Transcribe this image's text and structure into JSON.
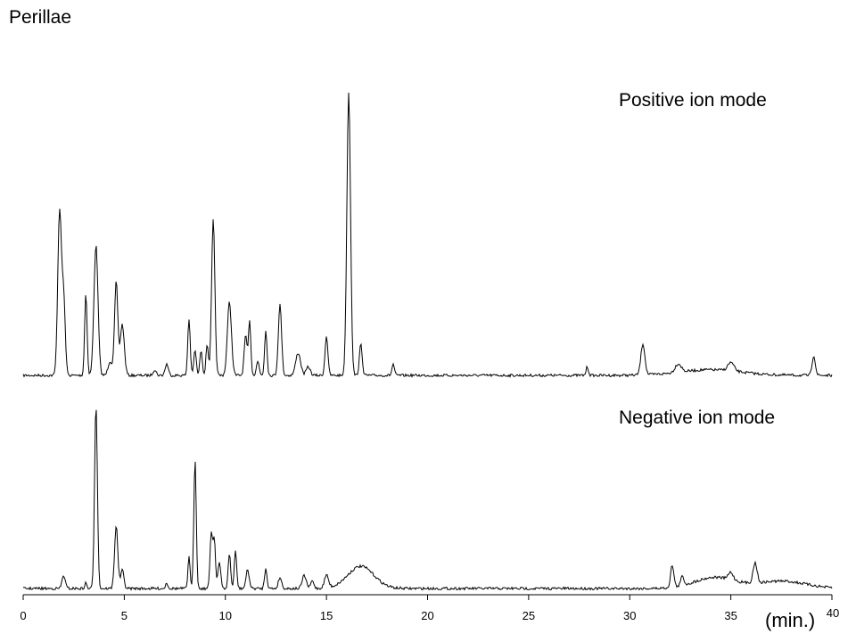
{
  "chart_data": {
    "type": "line",
    "title": "Perillae",
    "xlabel": "(min.)",
    "ylabel": "",
    "xlim": [
      0,
      40
    ],
    "xticks": [
      "0",
      "5",
      "10",
      "15",
      "20",
      "25",
      "30",
      "35",
      "40"
    ],
    "grid": false,
    "series": [
      {
        "name": "Positive ion mode",
        "y_units": "relative intensity (%)",
        "peaks": [
          {
            "rt": 1.8,
            "h": 58,
            "w": 0.09
          },
          {
            "rt": 2.0,
            "h": 27,
            "w": 0.08
          },
          {
            "rt": 3.1,
            "h": 29,
            "w": 0.06
          },
          {
            "rt": 3.6,
            "h": 46,
            "w": 0.1
          },
          {
            "rt": 4.3,
            "h": 5,
            "w": 0.1
          },
          {
            "rt": 4.6,
            "h": 33,
            "w": 0.08
          },
          {
            "rt": 4.9,
            "h": 18,
            "w": 0.1
          },
          {
            "rt": 6.5,
            "h": 2,
            "w": 0.08
          },
          {
            "rt": 7.1,
            "h": 4,
            "w": 0.08
          },
          {
            "rt": 8.2,
            "h": 20,
            "w": 0.06
          },
          {
            "rt": 8.5,
            "h": 9,
            "w": 0.06
          },
          {
            "rt": 8.8,
            "h": 9,
            "w": 0.06
          },
          {
            "rt": 9.1,
            "h": 11,
            "w": 0.06
          },
          {
            "rt": 9.4,
            "h": 55,
            "w": 0.08
          },
          {
            "rt": 10.2,
            "h": 26,
            "w": 0.1
          },
          {
            "rt": 11.0,
            "h": 14,
            "w": 0.07
          },
          {
            "rt": 11.2,
            "h": 19,
            "w": 0.06
          },
          {
            "rt": 11.6,
            "h": 5,
            "w": 0.07
          },
          {
            "rt": 12.0,
            "h": 16,
            "w": 0.06
          },
          {
            "rt": 12.7,
            "h": 25,
            "w": 0.08
          },
          {
            "rt": 13.6,
            "h": 8,
            "w": 0.12
          },
          {
            "rt": 14.1,
            "h": 3,
            "w": 0.1
          },
          {
            "rt": 15.0,
            "h": 14,
            "w": 0.07
          },
          {
            "rt": 16.1,
            "h": 100,
            "w": 0.09
          },
          {
            "rt": 16.7,
            "h": 11,
            "w": 0.07
          },
          {
            "rt": 18.3,
            "h": 4,
            "w": 0.06
          },
          {
            "rt": 27.9,
            "h": 3,
            "w": 0.06
          },
          {
            "rt": 30.65,
            "h": 11,
            "w": 0.1
          },
          {
            "rt": 32.4,
            "h": 3,
            "w": 0.15
          },
          {
            "rt": 34.0,
            "h": 2,
            "w": 1.5
          },
          {
            "rt": 35.0,
            "h": 3,
            "w": 0.15
          },
          {
            "rt": 39.1,
            "h": 7,
            "w": 0.08
          }
        ]
      },
      {
        "name": "Negative ion mode",
        "y_units": "relative intensity (%)",
        "peaks": [
          {
            "rt": 2.0,
            "h": 7,
            "w": 0.08
          },
          {
            "rt": 3.1,
            "h": 3,
            "w": 0.05
          },
          {
            "rt": 3.6,
            "h": 100,
            "w": 0.07
          },
          {
            "rt": 4.6,
            "h": 34,
            "w": 0.08
          },
          {
            "rt": 4.9,
            "h": 10,
            "w": 0.08
          },
          {
            "rt": 7.1,
            "h": 3,
            "w": 0.06
          },
          {
            "rt": 8.2,
            "h": 18,
            "w": 0.05
          },
          {
            "rt": 8.5,
            "h": 70,
            "w": 0.06
          },
          {
            "rt": 9.3,
            "h": 30,
            "w": 0.06
          },
          {
            "rt": 9.45,
            "h": 27,
            "w": 0.06
          },
          {
            "rt": 9.7,
            "h": 14,
            "w": 0.07
          },
          {
            "rt": 10.2,
            "h": 19,
            "w": 0.06
          },
          {
            "rt": 10.5,
            "h": 20,
            "w": 0.06
          },
          {
            "rt": 11.1,
            "h": 10,
            "w": 0.08
          },
          {
            "rt": 12.0,
            "h": 11,
            "w": 0.06
          },
          {
            "rt": 12.7,
            "h": 6,
            "w": 0.08
          },
          {
            "rt": 13.9,
            "h": 7,
            "w": 0.1
          },
          {
            "rt": 14.3,
            "h": 4,
            "w": 0.08
          },
          {
            "rt": 15.0,
            "h": 7,
            "w": 0.1
          },
          {
            "rt": 16.7,
            "h": 12,
            "w": 0.65
          },
          {
            "rt": 32.1,
            "h": 12,
            "w": 0.08
          },
          {
            "rt": 32.6,
            "h": 5,
            "w": 0.08
          },
          {
            "rt": 34.2,
            "h": 6,
            "w": 1.0
          },
          {
            "rt": 35.0,
            "h": 4,
            "w": 0.12
          },
          {
            "rt": 36.2,
            "h": 11,
            "w": 0.1
          },
          {
            "rt": 37.5,
            "h": 4,
            "w": 1.2
          }
        ]
      }
    ]
  }
}
